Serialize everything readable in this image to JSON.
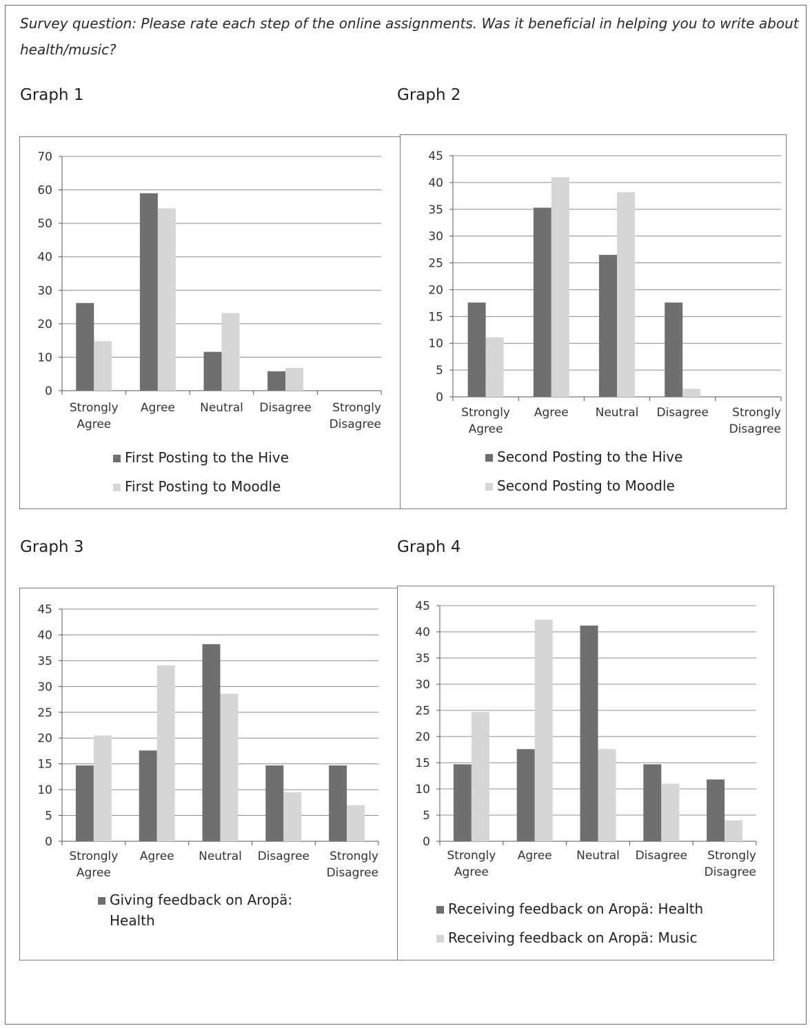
{
  "question": "Survey question:  Please rate each step of the online assignments. Was it beneficial in helping you to write about health/music?",
  "colors": {
    "dark": "#6f6f6f",
    "light": "#d6d6d6",
    "grid": "#8c8c8c"
  },
  "graphs": [
    {
      "title": "Graph 1",
      "legend": [
        "First Posting to the Hive",
        "First Posting to Moodle"
      ]
    },
    {
      "title": "Graph 2",
      "legend": [
        "Second Posting to the Hive",
        "Second Posting to Moodle"
      ]
    },
    {
      "title": "Graph 3",
      "legend": [
        "Giving feedback on Aropä: Health"
      ]
    },
    {
      "title": "Graph 4",
      "legend": [
        "Receiving feedback on Aropä: Health",
        "Receiving feedback on Aropä: Music"
      ]
    }
  ],
  "chart_data": [
    {
      "type": "bar",
      "title": "Graph 1",
      "categories": [
        "Strongly Agree",
        "Agree",
        "Neutral",
        "Disagree",
        "Strongly Disagree"
      ],
      "ylim": [
        0,
        70
      ],
      "yticks": [
        0,
        10,
        20,
        30,
        40,
        50,
        60,
        70
      ],
      "grid": true,
      "legend_position": "bottom",
      "series": [
        {
          "name": "First Posting to the Hive",
          "values": [
            26.2,
            59,
            11.6,
            5.8,
            0
          ]
        },
        {
          "name": "First Posting to Moodle",
          "values": [
            14.8,
            54.5,
            23.2,
            6.8,
            0
          ]
        }
      ]
    },
    {
      "type": "bar",
      "title": "Graph 2",
      "categories": [
        "Strongly Agree",
        "Agree",
        "Neutral",
        "Disagree",
        "Strongly Disagree"
      ],
      "ylim": [
        0,
        45
      ],
      "yticks": [
        0,
        5,
        10,
        15,
        20,
        25,
        30,
        35,
        40,
        45
      ],
      "grid": true,
      "legend_position": "bottom",
      "series": [
        {
          "name": "Second Posting to the Hive",
          "values": [
            17.6,
            35.3,
            26.5,
            17.6,
            0
          ]
        },
        {
          "name": "Second Posting to Moodle",
          "values": [
            11.1,
            41,
            38.2,
            1.5,
            0
          ]
        }
      ]
    },
    {
      "type": "bar",
      "title": "Graph 3",
      "categories": [
        "Strongly Agree",
        "Agree",
        "Neutral",
        "Disagree",
        "Strongly Disagree"
      ],
      "ylim": [
        0,
        45
      ],
      "yticks": [
        0,
        5,
        10,
        15,
        20,
        25,
        30,
        35,
        40,
        45
      ],
      "grid": true,
      "legend_position": "bottom",
      "series": [
        {
          "name": "Giving feedback on Aropä: Health",
          "values": [
            14.7,
            17.6,
            38.2,
            14.7,
            14.7
          ]
        },
        {
          "name": "",
          "values": [
            20.5,
            34.1,
            28.6,
            9.5,
            7
          ]
        }
      ]
    },
    {
      "type": "bar",
      "title": "Graph 4",
      "categories": [
        "Strongly Agree",
        "Agree",
        "Neutral",
        "Disagree",
        "Strongly Disagree"
      ],
      "ylim": [
        0,
        45
      ],
      "yticks": [
        0,
        5,
        10,
        15,
        20,
        25,
        30,
        35,
        40,
        45
      ],
      "grid": true,
      "legend_position": "bottom",
      "series": [
        {
          "name": "Receiving feedback on Aropä: Health",
          "values": [
            14.7,
            17.6,
            41.2,
            14.7,
            11.8
          ]
        },
        {
          "name": "Receiving feedback on Aropä: Music",
          "values": [
            24.7,
            42.3,
            17.6,
            11,
            4
          ]
        }
      ]
    }
  ]
}
